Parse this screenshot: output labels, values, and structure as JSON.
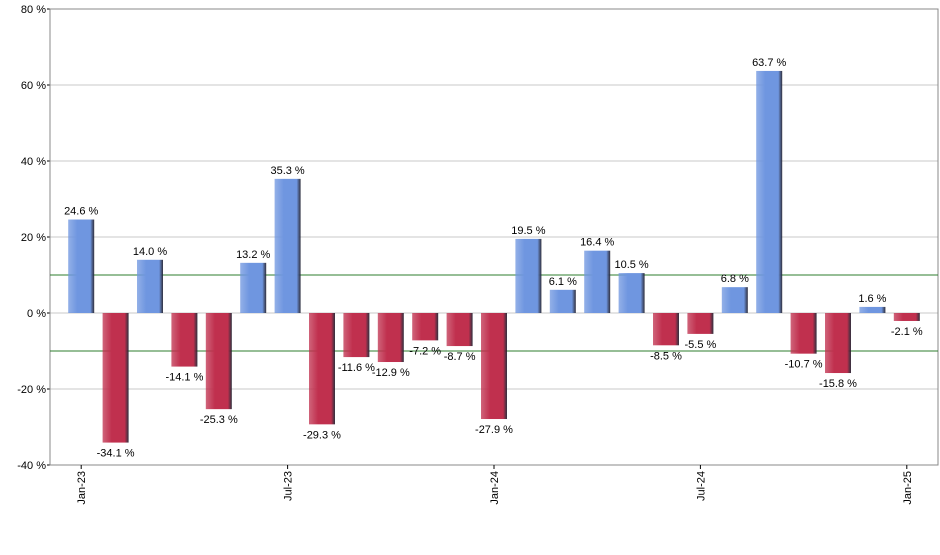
{
  "chart_data": {
    "type": "bar",
    "categories": [
      "Jan-23",
      null,
      null,
      null,
      null,
      null,
      "Jul-23",
      null,
      null,
      null,
      null,
      null,
      "Jan-24",
      null,
      null,
      null,
      null,
      null,
      "Jul-24",
      null,
      null,
      null,
      null,
      null,
      "Jan-25"
    ],
    "values": [
      24.6,
      -34.1,
      14.0,
      -14.1,
      -25.3,
      13.2,
      35.3,
      -29.3,
      -11.6,
      -12.9,
      -7.2,
      -8.7,
      -27.9,
      19.5,
      6.1,
      16.4,
      10.5,
      -8.5,
      -5.5,
      6.8,
      63.7,
      -10.7,
      -15.8,
      1.6,
      -2.1
    ],
    "value_labels": [
      "24.6 %",
      "-34.1 %",
      "14.0 %",
      "-14.1 %",
      "-25.3 %",
      "13.2 %",
      "35.3 %",
      "-29.3 %",
      "-11.6 %",
      "-12.9 %",
      "-7.2 %",
      "-8.7 %",
      "-27.9 %",
      "19.5 %",
      "6.1 %",
      "16.4 %",
      "10.5 %",
      "-8.5 %",
      "-5.5 %",
      "6.8 %",
      "63.7 %",
      "-10.7 %",
      "-15.8 %",
      "1.6 %",
      "-2.1 %"
    ],
    "positive_color": "#6f96e0",
    "negative_color": "#c0304e",
    "ylim": [
      -40,
      80
    ],
    "yticks": [
      {
        "value": -40,
        "label": "-40 %"
      },
      {
        "value": -20,
        "label": "-20 %"
      },
      {
        "value": 0,
        "label": "0 %"
      },
      {
        "value": 20,
        "label": "20 %"
      },
      {
        "value": 40,
        "label": "40 %"
      },
      {
        "value": 60,
        "label": "60 %"
      },
      {
        "value": 80,
        "label": "80 %"
      }
    ],
    "grid": true,
    "reference_lines": [
      10,
      -10
    ],
    "reference_color": "#2e7d2e"
  }
}
